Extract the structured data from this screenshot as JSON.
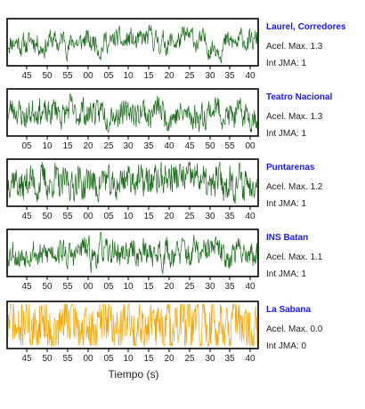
{
  "xlabel": "Tiempo (s)",
  "chart_data": [
    {
      "type": "line",
      "station": "Laurel, Corredores",
      "accel_label": "Acel. Max.",
      "accel_max": "1.3",
      "jma_label": "Int JMA:",
      "jma": "1",
      "color": "#1a6b1a",
      "x_ticks": [
        "45",
        "50",
        "55",
        "00",
        "05",
        "10",
        "15",
        "20",
        "25",
        "30",
        "35",
        "40"
      ],
      "seed": 11,
      "amplitude": 0.72,
      "smooth": 0.78
    },
    {
      "type": "line",
      "station": "Teatro Nacional",
      "accel_label": "Acel. Max.",
      "accel_max": "1.3",
      "jma_label": "Int JMA:",
      "jma": "1",
      "color": "#1a6b1a",
      "x_ticks": [
        "05",
        "10",
        "15",
        "20",
        "25",
        "30",
        "35",
        "40",
        "45",
        "50",
        "55",
        "00"
      ],
      "seed": 23,
      "amplitude": 0.55,
      "smooth": 0.55
    },
    {
      "type": "line",
      "station": "Puntarenas",
      "accel_label": "Acel. Max.",
      "accel_max": "1.2",
      "jma_label": "Int JMA:",
      "jma": "1",
      "color": "#1a6b1a",
      "x_ticks": [
        "45",
        "50",
        "55",
        "00",
        "05",
        "10",
        "15",
        "20",
        "25",
        "30",
        "35",
        "40"
      ],
      "seed": 37,
      "amplitude": 0.5,
      "smooth": 0.35
    },
    {
      "type": "line",
      "station": "INS Batan",
      "accel_label": "Acel. Max.",
      "accel_max": "1.1",
      "jma_label": "Int JMA:",
      "jma": "1",
      "color": "#1a6b1a",
      "x_ticks": [
        "45",
        "50",
        "55",
        "00",
        "05",
        "10",
        "15",
        "20",
        "25",
        "30",
        "35",
        "40"
      ],
      "seed": 53,
      "amplitude": 0.6,
      "smooth": 0.6
    },
    {
      "type": "line",
      "station": "La Sabana",
      "accel_label": "Acel. Max.",
      "accel_max": "0.0",
      "jma_label": "Int JMA:",
      "jma": "0",
      "color": "#f5a300",
      "x_ticks": [
        "45",
        "50",
        "55",
        "00",
        "05",
        "10",
        "15",
        "20",
        "25",
        "30",
        "35",
        "40"
      ],
      "seed": 71,
      "amplitude": 0.7,
      "smooth": 0.2
    }
  ]
}
